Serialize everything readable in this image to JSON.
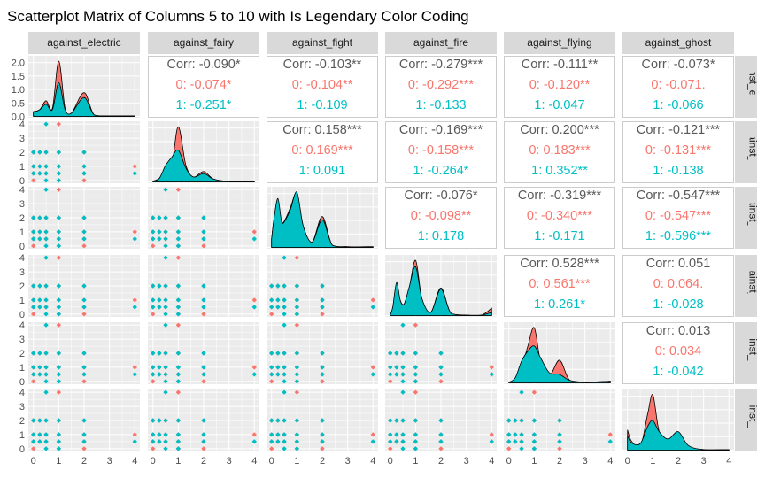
{
  "chart_data": {
    "type": "scatterplot-matrix",
    "title": "Scatterplot Matrix of Columns 5 to 10 with Is Legendary Color Coding",
    "variables": [
      "against_electric",
      "against_fairy",
      "against_fight",
      "against_fire",
      "against_flying",
      "against_ghost"
    ],
    "row_labels": [
      "against_electric",
      "against_fairy",
      "against_fight",
      "against_fire",
      "against_flying",
      "against_ghost"
    ],
    "groups": [
      {
        "name": "0",
        "color": "#F8766D"
      },
      {
        "name": "1",
        "color": "#00BFC4"
      }
    ],
    "x_ticks": [
      "0",
      "1",
      "2",
      "3",
      "4"
    ],
    "x_range": [
      -0.2,
      4.2
    ],
    "density_y_ticks": [
      "0.0",
      "0.5",
      "1.0",
      "1.5",
      "2.0"
    ],
    "density_y_range": [
      -0.05,
      2.25
    ],
    "scatter_y_ticks": [
      "0",
      "1",
      "2",
      "3",
      "4"
    ],
    "scatter_y_range": [
      -0.2,
      4.2
    ],
    "unique_values": [
      0,
      0.25,
      0.5,
      1,
      2,
      4
    ],
    "densities": {
      "against_electric": {
        "0": [
          [
            0,
            0.18
          ],
          [
            0.25,
            0.25
          ],
          [
            0.5,
            0.58
          ],
          [
            0.75,
            0.3
          ],
          [
            1,
            2.05
          ],
          [
            1.25,
            0.3
          ],
          [
            1.5,
            0.12
          ],
          [
            2,
            0.88
          ],
          [
            2.4,
            0.05
          ],
          [
            3,
            0.02
          ],
          [
            4,
            0.02
          ]
        ],
        "1": [
          [
            0,
            0.15
          ],
          [
            0.25,
            0.25
          ],
          [
            0.5,
            0.45
          ],
          [
            0.75,
            0.25
          ],
          [
            1,
            1.25
          ],
          [
            1.25,
            0.25
          ],
          [
            1.5,
            0.12
          ],
          [
            2,
            0.7
          ],
          [
            2.4,
            0.05
          ],
          [
            3,
            0.02
          ],
          [
            4,
            0.02
          ]
        ]
      },
      "against_fairy": {
        "0": [
          [
            0,
            0.05
          ],
          [
            0.25,
            0.25
          ],
          [
            0.5,
            0.9
          ],
          [
            0.75,
            1.3
          ],
          [
            1,
            4.0
          ],
          [
            1.3,
            1.2
          ],
          [
            1.6,
            0.35
          ],
          [
            2,
            0.75
          ],
          [
            2.4,
            0.2
          ],
          [
            3,
            0.04
          ],
          [
            4,
            0.03
          ]
        ],
        "1": [
          [
            0,
            0.05
          ],
          [
            0.25,
            0.25
          ],
          [
            0.5,
            1.2
          ],
          [
            0.75,
            1.8
          ],
          [
            1,
            2.3
          ],
          [
            1.3,
            1.0
          ],
          [
            1.6,
            0.35
          ],
          [
            2,
            0.6
          ],
          [
            2.4,
            0.2
          ],
          [
            3,
            0.04
          ],
          [
            4,
            0.03
          ]
        ]
      },
      "against_fight": {
        "0": [
          [
            0,
            0.4
          ],
          [
            0.1,
            1.35
          ],
          [
            0.25,
            2.1
          ],
          [
            0.4,
            1.2
          ],
          [
            0.55,
            1.35
          ],
          [
            0.75,
            1.9
          ],
          [
            1,
            2.55
          ],
          [
            1.25,
            1.0
          ],
          [
            1.6,
            0.25
          ],
          [
            2,
            1.45
          ],
          [
            2.4,
            0.1
          ],
          [
            3,
            0.03
          ],
          [
            4,
            0.03
          ]
        ],
        "1": [
          [
            0,
            0.4
          ],
          [
            0.1,
            1.4
          ],
          [
            0.25,
            2.3
          ],
          [
            0.4,
            1.2
          ],
          [
            0.55,
            1.3
          ],
          [
            0.75,
            1.8
          ],
          [
            1,
            2.6
          ],
          [
            1.25,
            1.0
          ],
          [
            1.6,
            0.25
          ],
          [
            2,
            1.3
          ],
          [
            2.4,
            0.1
          ],
          [
            3,
            0.03
          ],
          [
            4,
            0.03
          ]
        ]
      },
      "against_fire": {
        "0": [
          [
            0,
            0.03
          ],
          [
            0.1,
            0.35
          ],
          [
            0.25,
            1.35
          ],
          [
            0.4,
            0.7
          ],
          [
            0.55,
            0.55
          ],
          [
            0.75,
            1.3
          ],
          [
            1,
            2.6
          ],
          [
            1.25,
            0.8
          ],
          [
            1.6,
            0.15
          ],
          [
            2,
            1.3
          ],
          [
            2.4,
            0.1
          ],
          [
            3,
            0.02
          ],
          [
            3.6,
            0.02
          ],
          [
            4,
            0.35
          ]
        ],
        "1": [
          [
            0,
            0.03
          ],
          [
            0.1,
            0.4
          ],
          [
            0.25,
            1.55
          ],
          [
            0.4,
            0.7
          ],
          [
            0.55,
            0.55
          ],
          [
            0.75,
            1.35
          ],
          [
            1,
            2.3
          ],
          [
            1.25,
            0.8
          ],
          [
            1.6,
            0.15
          ],
          [
            2,
            1.25
          ],
          [
            2.4,
            0.1
          ],
          [
            3,
            0.02
          ],
          [
            3.6,
            0.02
          ],
          [
            4,
            0.15
          ]
        ]
      },
      "against_flying": {
        "0": [
          [
            0,
            0.03
          ],
          [
            0.25,
            0.15
          ],
          [
            0.5,
            0.9
          ],
          [
            0.75,
            2.2
          ],
          [
            1,
            3.3
          ],
          [
            1.25,
            1.3
          ],
          [
            1.6,
            0.45
          ],
          [
            2,
            1.35
          ],
          [
            2.4,
            0.15
          ],
          [
            3,
            0.04
          ],
          [
            4,
            0.1
          ]
        ],
        "1": [
          [
            0,
            0.03
          ],
          [
            0.25,
            0.3
          ],
          [
            0.5,
            1.3
          ],
          [
            0.75,
            1.9
          ],
          [
            1,
            2.2
          ],
          [
            1.25,
            1.5
          ],
          [
            1.6,
            0.6
          ],
          [
            2,
            0.5
          ],
          [
            2.4,
            0.15
          ],
          [
            3,
            0.04
          ],
          [
            4,
            0.1
          ]
        ]
      },
      "against_ghost": {
        "0": [
          [
            0,
            1.1
          ],
          [
            0.15,
            0.5
          ],
          [
            0.5,
            0.15
          ],
          [
            0.8,
            2.0
          ],
          [
            1,
            3.0
          ],
          [
            1.25,
            1.0
          ],
          [
            1.6,
            0.45
          ],
          [
            2,
            0.9
          ],
          [
            2.4,
            0.2
          ],
          [
            3,
            0.03
          ],
          [
            4,
            0.03
          ]
        ],
        "1": [
          [
            0,
            0.8
          ],
          [
            0.15,
            0.4
          ],
          [
            0.5,
            0.35
          ],
          [
            0.8,
            1.3
          ],
          [
            1,
            1.6
          ],
          [
            1.25,
            1.0
          ],
          [
            1.6,
            0.6
          ],
          [
            2,
            1.0
          ],
          [
            2.4,
            0.25
          ],
          [
            3,
            0.03
          ],
          [
            4,
            0.03
          ]
        ]
      }
    },
    "scatter_points": [
      [
        0,
        0,
        0
      ],
      [
        0,
        1,
        0
      ],
      [
        0,
        1,
        1
      ],
      [
        0,
        2,
        0
      ],
      [
        0,
        2,
        1
      ],
      [
        0,
        0.5,
        0
      ],
      [
        0,
        0.5,
        1
      ],
      [
        0.25,
        1,
        0
      ],
      [
        0.25,
        1,
        1
      ],
      [
        0.25,
        2,
        0
      ],
      [
        0.25,
        2,
        1
      ],
      [
        0.25,
        0.5,
        0
      ],
      [
        0.25,
        0.5,
        1
      ],
      [
        0.5,
        0,
        1
      ],
      [
        0.5,
        1,
        0
      ],
      [
        0.5,
        1,
        1
      ],
      [
        0.5,
        2,
        0
      ],
      [
        0.5,
        2,
        1
      ],
      [
        0.5,
        0.5,
        0
      ],
      [
        0.5,
        0.5,
        1
      ],
      [
        0.5,
        4,
        1
      ],
      [
        1,
        0,
        0
      ],
      [
        1,
        0,
        1
      ],
      [
        1,
        1,
        0
      ],
      [
        1,
        1,
        1
      ],
      [
        1,
        2,
        0
      ],
      [
        1,
        2,
        1
      ],
      [
        1,
        0.5,
        0
      ],
      [
        1,
        0.5,
        1
      ],
      [
        1,
        4,
        0
      ],
      [
        2,
        0,
        0
      ],
      [
        2,
        1,
        0
      ],
      [
        2,
        1,
        1
      ],
      [
        2,
        2,
        0
      ],
      [
        2,
        2,
        1
      ],
      [
        2,
        0.5,
        0
      ],
      [
        2,
        0.5,
        1
      ],
      [
        4,
        1,
        0
      ],
      [
        4,
        0.5,
        1
      ]
    ],
    "correlations": {
      "against_fairy|against_electric": {
        "overall": "Corr: -0.090*",
        "g0": "0: -0.074*",
        "g1": "1: -0.251*"
      },
      "against_fight|against_electric": {
        "overall": "Corr: -0.103**",
        "g0": "0: -0.104**",
        "g1": "1: -0.109"
      },
      "against_fire|against_electric": {
        "overall": "Corr: -0.279***",
        "g0": "0: -0.292***",
        "g1": "1: -0.133"
      },
      "against_flying|against_electric": {
        "overall": "Corr: -0.111**",
        "g0": "0: -0.120**",
        "g1": "1: -0.047"
      },
      "against_ghost|against_electric": {
        "overall": "Corr: -0.073*",
        "g0": "0: -0.071.",
        "g1": "1: -0.066"
      },
      "against_fight|against_fairy": {
        "overall": "Corr: 0.158***",
        "g0": "0: 0.169***",
        "g1": "1: 0.091"
      },
      "against_fire|against_fairy": {
        "overall": "Corr: -0.169***",
        "g0": "0: -0.158***",
        "g1": "1: -0.264*"
      },
      "against_flying|against_fairy": {
        "overall": "Corr: 0.200***",
        "g0": "0: 0.183***",
        "g1": "1: 0.352**"
      },
      "against_ghost|against_fairy": {
        "overall": "Corr: -0.121***",
        "g0": "0: -0.131***",
        "g1": "1: -0.138"
      },
      "against_fire|against_fight": {
        "overall": "Corr: -0.076*",
        "g0": "0: -0.098**",
        "g1": "1: 0.178"
      },
      "against_flying|against_fight": {
        "overall": "Corr: -0.319***",
        "g0": "0: -0.340***",
        "g1": "1: -0.171"
      },
      "against_ghost|against_fight": {
        "overall": "Corr: -0.547***",
        "g0": "0: -0.547***",
        "g1": "1: -0.596***"
      },
      "against_flying|against_fire": {
        "overall": "Corr: 0.528***",
        "g0": "0: 0.561***",
        "g1": "1: 0.261*"
      },
      "against_ghost|against_fire": {
        "overall": "Corr: 0.051",
        "g0": "0: 0.064.",
        "g1": "1: -0.028"
      },
      "against_ghost|against_flying": {
        "overall": "Corr: 0.013",
        "g0": "0: 0.034",
        "g1": "1: -0.042"
      }
    },
    "colors": {
      "panel_bg": "#EBEBEB",
      "grid_major": "#FFFFFF",
      "strip_bg": "#D9D9D9",
      "corr_overall": "#595959",
      "corr_box_border": "#CCCCCC"
    }
  }
}
